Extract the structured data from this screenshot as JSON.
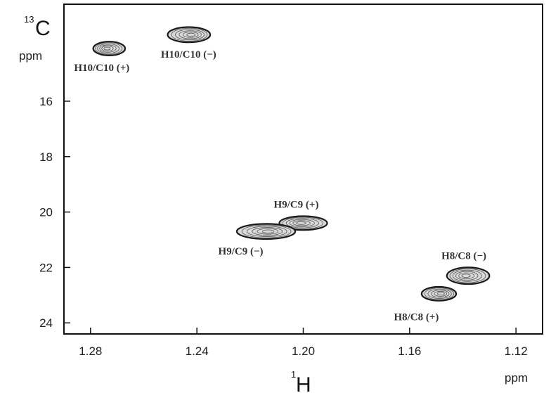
{
  "chart_data": {
    "type": "contour",
    "x_axis": {
      "nucleus_mass": "1",
      "nucleus_symbol": "H",
      "unit": "ppm",
      "range": [
        1.29,
        1.11
      ],
      "ticks": [
        1.28,
        1.24,
        1.2,
        1.16,
        1.12
      ],
      "tick_labels": [
        "1.28",
        "1.24",
        "1.20",
        "1.16",
        "1.12"
      ]
    },
    "y_axis": {
      "nucleus_mass": "13",
      "nucleus_symbol": "C",
      "unit": "ppm",
      "range": [
        12.5,
        24.4
      ],
      "ticks": [
        16,
        18,
        20,
        22,
        24
      ],
      "tick_labels": [
        "16",
        "18",
        "20",
        "22",
        "24"
      ]
    },
    "peaks": [
      {
        "label": "H10/C10 (+)",
        "x": 1.273,
        "y": 14.1,
        "width": 0.012,
        "height": 0.5
      },
      {
        "label": "H10/C10 (−)",
        "x": 1.243,
        "y": 13.6,
        "width": 0.016,
        "height": 0.55
      },
      {
        "label": "H9/C9 (+)",
        "x": 1.2,
        "y": 20.4,
        "width": 0.018,
        "height": 0.5
      },
      {
        "label": "H9/C9 (−)",
        "x": 1.214,
        "y": 20.7,
        "width": 0.022,
        "height": 0.55
      },
      {
        "label": "H8/C8 (−)",
        "x": 1.138,
        "y": 22.3,
        "width": 0.016,
        "height": 0.6
      },
      {
        "label": "H8/C8 (+)",
        "x": 1.149,
        "y": 22.95,
        "width": 0.013,
        "height": 0.5
      }
    ],
    "grid": false
  }
}
